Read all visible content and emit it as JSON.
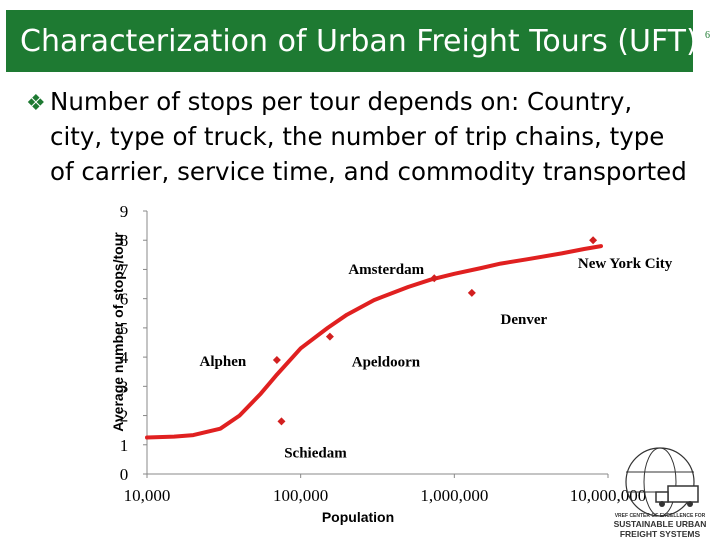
{
  "slide": {
    "title": "Characterization of Urban Freight Tours (UFT)",
    "number": "6",
    "bullet_icon": "diamond-bullet-icon",
    "bullet_lines": [
      "Number of stops per tour depends on: Country,",
      "city, type of truck, the number of trip chains, type",
      "of carrier, service time, and commodity transported"
    ]
  },
  "chart_data": {
    "type": "scatter",
    "title": "",
    "xlabel": "Population",
    "ylabel": "Average number of stops/tour",
    "x_scale": "log",
    "xlim": [
      10000,
      10000000
    ],
    "ylim": [
      0,
      9
    ],
    "x_ticks": [
      10000,
      100000,
      1000000,
      10000000
    ],
    "x_tick_labels": [
      "10,000",
      "100,000",
      "1,000,000",
      "10,000,000"
    ],
    "y_ticks": [
      0,
      1,
      2,
      3,
      4,
      5,
      6,
      7,
      8,
      9
    ],
    "y_tick_labels": [
      "0",
      "1",
      "2",
      "3",
      "4",
      "5",
      "6",
      "7",
      "8",
      "9"
    ],
    "grid": false,
    "marker_color": "#d21f1f",
    "curve_color": "#e02020",
    "points": [
      {
        "name": "Alphen",
        "x": 70000,
        "y": 3.9
      },
      {
        "name": "Schiedam",
        "x": 75000,
        "y": 1.8
      },
      {
        "name": "Apeldoorn",
        "x": 155000,
        "y": 4.7
      },
      {
        "name": "Amsterdam",
        "x": 740000,
        "y": 6.7
      },
      {
        "name": "Denver",
        "x": 1300000,
        "y": 6.2
      },
      {
        "name": "New York City",
        "x": 8000000,
        "y": 8.0
      }
    ],
    "trend_curve": [
      [
        10000,
        1.25
      ],
      [
        15000,
        1.28
      ],
      [
        20000,
        1.33
      ],
      [
        30000,
        1.55
      ],
      [
        40000,
        2.0
      ],
      [
        55000,
        2.75
      ],
      [
        70000,
        3.4
      ],
      [
        100000,
        4.3
      ],
      [
        150000,
        5.0
      ],
      [
        200000,
        5.45
      ],
      [
        300000,
        5.95
      ],
      [
        500000,
        6.4
      ],
      [
        700000,
        6.65
      ],
      [
        1000000,
        6.85
      ],
      [
        1500000,
        7.05
      ],
      [
        2000000,
        7.2
      ],
      [
        3000000,
        7.35
      ],
      [
        5000000,
        7.55
      ],
      [
        7000000,
        7.7
      ],
      [
        9000000,
        7.8
      ]
    ]
  },
  "logo": {
    "line1": "SUSTAINABLE URBAN",
    "line2": "FREIGHT SYSTEMS",
    "caption": "VREF CENTER OF EXCELLENCE FOR"
  }
}
